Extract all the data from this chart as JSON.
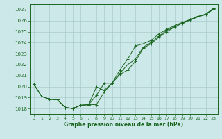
{
  "bg_color": "#cce8e8",
  "grid_color": "#aacccc",
  "line_color": "#1a6620",
  "marker_color": "#1a6620",
  "text_color": "#1a6620",
  "xlabel": "Graphe pression niveau de la mer (hPa)",
  "ylim": [
    1017.5,
    1027.5
  ],
  "xlim": [
    -0.5,
    23.5
  ],
  "yticks": [
    1018,
    1019,
    1020,
    1021,
    1022,
    1023,
    1024,
    1025,
    1026,
    1027
  ],
  "xticks": [
    0,
    1,
    2,
    3,
    4,
    5,
    6,
    7,
    8,
    9,
    10,
    11,
    12,
    13,
    14,
    15,
    16,
    17,
    18,
    19,
    20,
    21,
    22,
    23
  ],
  "series1": {
    "x": [
      0,
      1,
      2,
      3,
      4,
      5,
      6,
      7,
      8,
      9,
      10,
      11,
      12,
      13,
      14,
      15,
      16,
      17,
      18,
      19,
      20,
      21,
      22,
      23
    ],
    "y": [
      1020.2,
      1019.1,
      1018.85,
      1018.8,
      1018.1,
      1018.0,
      1018.3,
      1018.35,
      1018.35,
      1019.5,
      1020.3,
      1021.5,
      1022.5,
      1023.7,
      1023.9,
      1024.2,
      1024.8,
      1025.2,
      1025.55,
      1025.85,
      1026.1,
      1026.35,
      1026.6,
      1027.1
    ]
  },
  "series2": {
    "x": [
      0,
      1,
      2,
      3,
      4,
      5,
      6,
      7,
      8,
      9,
      10,
      11,
      12,
      13,
      14,
      15,
      16,
      17,
      18,
      19,
      20,
      21,
      22,
      23
    ],
    "y": [
      1020.2,
      1019.1,
      1018.85,
      1018.8,
      1018.1,
      1018.0,
      1018.3,
      1018.35,
      1019.2,
      1020.3,
      1020.3,
      1021.1,
      1021.5,
      1022.3,
      1023.5,
      1023.9,
      1024.5,
      1025.0,
      1025.4,
      1025.8,
      1026.1,
      1026.4,
      1026.6,
      1027.15
    ]
  },
  "series3": {
    "x": [
      0,
      1,
      2,
      3,
      4,
      5,
      6,
      7,
      8,
      9,
      10,
      11,
      12,
      13,
      14,
      15,
      16,
      17,
      18,
      19,
      20,
      21,
      22,
      23
    ],
    "y": [
      1020.2,
      1019.1,
      1018.85,
      1018.8,
      1018.1,
      1018.0,
      1018.3,
      1018.35,
      1019.95,
      1019.65,
      1020.3,
      1021.2,
      1022.0,
      1022.5,
      1023.6,
      1024.0,
      1024.6,
      1025.1,
      1025.45,
      1025.75,
      1026.05,
      1026.35,
      1026.55,
      1027.05
    ]
  }
}
